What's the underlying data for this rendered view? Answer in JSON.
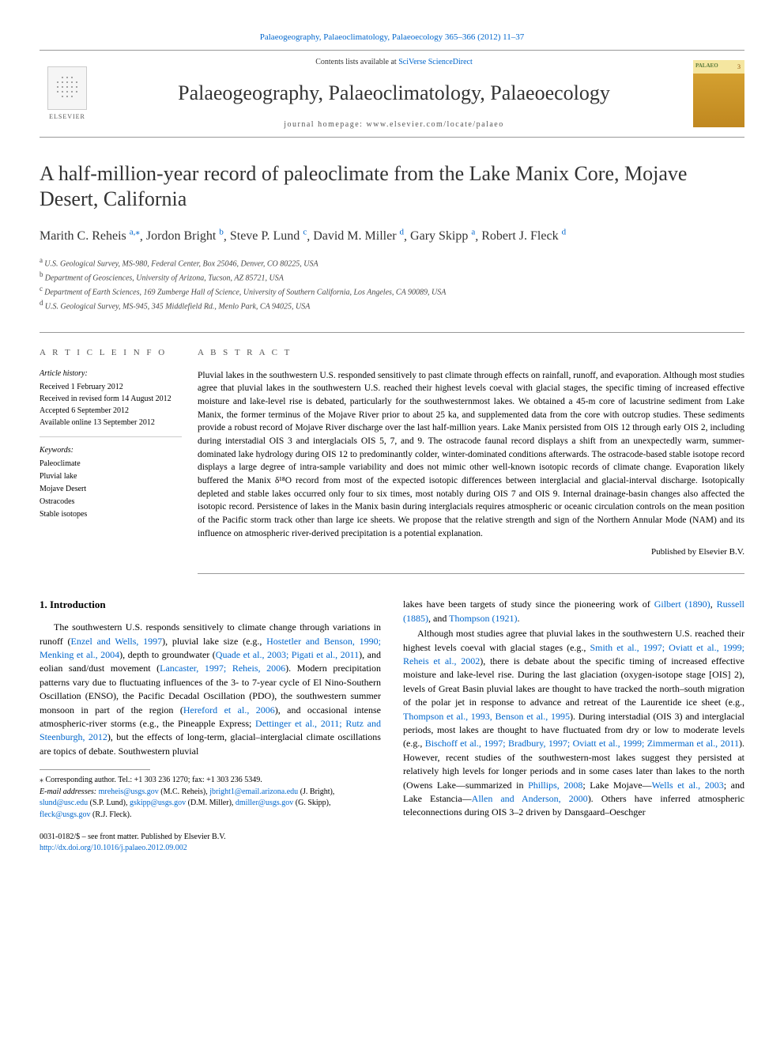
{
  "header": {
    "top_link": "Palaeogeography, Palaeoclimatology, Palaeoecology 365–366 (2012) 11–37",
    "contents_prefix": "Contents lists available at ",
    "contents_link": "SciVerse ScienceDirect",
    "journal_title": "Palaeogeography, Palaeoclimatology, Palaeoecology",
    "homepage": "journal homepage: www.elsevier.com/locate/palaeo",
    "publisher_name": "ELSEVIER"
  },
  "title": "A half-million-year record of paleoclimate from the Lake Manix Core, Mojave Desert, California",
  "authors": [
    {
      "name": "Marith C. Reheis",
      "sup": "a,",
      "star": true
    },
    {
      "name": "Jordon Bright",
      "sup": "b"
    },
    {
      "name": "Steve P. Lund",
      "sup": "c"
    },
    {
      "name": "David M. Miller",
      "sup": "d"
    },
    {
      "name": "Gary Skipp",
      "sup": "a"
    },
    {
      "name": "Robert J. Fleck",
      "sup": "d"
    }
  ],
  "affiliations": [
    {
      "sup": "a",
      "text": "U.S. Geological Survey, MS-980, Federal Center, Box 25046, Denver, CO 80225, USA"
    },
    {
      "sup": "b",
      "text": "Department of Geosciences, University of Arizona, Tucson, AZ 85721, USA"
    },
    {
      "sup": "c",
      "text": "Department of Earth Sciences, 169 Zumberge Hall of Science, University of Southern California, Los Angeles, CA 90089, USA"
    },
    {
      "sup": "d",
      "text": "U.S. Geological Survey, MS-945, 345 Middlefield Rd., Menlo Park, CA 94025, USA"
    }
  ],
  "article_info": {
    "heading": "A R T I C L E   I N F O",
    "history_label": "Article history:",
    "history": [
      "Received 1 February 2012",
      "Received in revised form 14 August 2012",
      "Accepted 6 September 2012",
      "Available online 13 September 2012"
    ],
    "keywords_label": "Keywords:",
    "keywords": [
      "Paleoclimate",
      "Pluvial lake",
      "Mojave Desert",
      "Ostracodes",
      "Stable isotopes"
    ]
  },
  "abstract": {
    "heading": "A B S T R A C T",
    "text": "Pluvial lakes in the southwestern U.S. responded sensitively to past climate through effects on rainfall, runoff, and evaporation. Although most studies agree that pluvial lakes in the southwestern U.S. reached their highest levels coeval with glacial stages, the specific timing of increased effective moisture and lake-level rise is debated, particularly for the southwesternmost lakes. We obtained a 45-m core of lacustrine sediment from Lake Manix, the former terminus of the Mojave River prior to about 25 ka, and supplemented data from the core with outcrop studies. These sediments provide a robust record of Mojave River discharge over the last half-million years. Lake Manix persisted from OIS 12 through early OIS 2, including during interstadial OIS 3 and interglacials OIS 5, 7, and 9. The ostracode faunal record displays a shift from an unexpectedly warm, summer-dominated lake hydrology during OIS 12 to predominantly colder, winter-dominated conditions afterwards. The ostracode-based stable isotope record displays a large degree of intra-sample variability and does not mimic other well-known isotopic records of climate change. Evaporation likely buffered the Manix δ¹⁸O record from most of the expected isotopic differences between interglacial and glacial-interval discharge. Isotopically depleted and stable lakes occurred only four to six times, most notably during OIS 7 and OIS 9. Internal drainage-basin changes also affected the isotopic record. Persistence of lakes in the Manix basin during interglacials requires atmospheric or oceanic circulation controls on the mean position of the Pacific storm track other than large ice sheets. We propose that the relative strength and sign of the Northern Annular Mode (NAM) and its influence on atmospheric river-derived precipitation is a potential explanation.",
    "published_by": "Published by Elsevier B.V."
  },
  "body": {
    "section_heading": "1. Introduction",
    "col1_p1_parts": [
      {
        "t": "The southwestern U.S. responds sensitively to climate change through variations in runoff ("
      },
      {
        "t": "Enzel and Wells, 1997",
        "link": true
      },
      {
        "t": "), pluvial lake size (e.g., "
      },
      {
        "t": "Hostetler and Benson, 1990; Menking et al., 2004",
        "link": true
      },
      {
        "t": "), depth to groundwater ("
      },
      {
        "t": "Quade et al., 2003; Pigati et al., 2011",
        "link": true
      },
      {
        "t": "), and eolian sand/dust movement ("
      },
      {
        "t": "Lancaster, 1997; Reheis, 2006",
        "link": true
      },
      {
        "t": "). Modern precipitation patterns vary due to fluctuating influences of the 3- to 7-year cycle of El Nino-Southern Oscillation (ENSO), the Pacific Decadal Oscillation (PDO), the southwestern summer monsoon in part of the region ("
      },
      {
        "t": "Hereford et al., 2006",
        "link": true
      },
      {
        "t": "), and occasional intense atmospheric-river storms (e.g., the Pineapple Express; "
      },
      {
        "t": "Dettinger et al., 2011; Rutz and Steenburgh, 2012",
        "link": true
      },
      {
        "t": "), but the effects of long-term, glacial–interglacial climate oscillations are topics of debate. Southwestern pluvial"
      }
    ],
    "col2_p1_parts": [
      {
        "t": "lakes have been targets of study since the pioneering work of "
      },
      {
        "t": "Gilbert (1890)",
        "link": true
      },
      {
        "t": ", "
      },
      {
        "t": "Russell (1885)",
        "link": true
      },
      {
        "t": ", and "
      },
      {
        "t": "Thompson (1921)",
        "link": true
      },
      {
        "t": "."
      }
    ],
    "col2_p2_parts": [
      {
        "t": "Although most studies agree that pluvial lakes in the southwestern U.S. reached their highest levels coeval with glacial stages (e.g., "
      },
      {
        "t": "Smith et al., 1997; Oviatt et al., 1999; Reheis et al., 2002",
        "link": true
      },
      {
        "t": "), there is debate about the specific timing of increased effective moisture and lake-level rise. During the last glaciation (oxygen-isotope stage [OIS] 2), levels of Great Basin pluvial lakes are thought to have tracked the north–south migration of the polar jet in response to advance and retreat of the Laurentide ice sheet (e.g., "
      },
      {
        "t": "Thompson et al., 1993, Benson et al., 1995",
        "link": true
      },
      {
        "t": "). During interstadial (OIS 3) and interglacial periods, most lakes are thought to have fluctuated from dry or low to moderate levels (e.g., "
      },
      {
        "t": "Bischoff et al., 1997; Bradbury, 1997; Oviatt et al., 1999; Zimmerman et al., 2011",
        "link": true
      },
      {
        "t": "). However, recent studies of the southwestern-most lakes suggest they persisted at relatively high levels for longer periods and in some cases later than lakes to the north (Owens Lake—summarized in "
      },
      {
        "t": "Phillips, 2008",
        "link": true
      },
      {
        "t": "; Lake Mojave—"
      },
      {
        "t": "Wells et al., 2003",
        "link": true
      },
      {
        "t": "; and Lake Estancia—"
      },
      {
        "t": "Allen and Anderson, 2000",
        "link": true
      },
      {
        "t": "). Others have inferred atmospheric teleconnections during OIS 3–2 driven by Dansgaard–Oeschger"
      }
    ]
  },
  "footnotes": {
    "corr_label": "Corresponding author. Tel.: +1 303 236 1270; fax: +1 303 236 5349.",
    "email_label": "E-mail addresses:",
    "emails": [
      {
        "email": "mreheis@usgs.gov",
        "person": "(M.C. Reheis)"
      },
      {
        "email": "jbright1@email.arizona.edu",
        "person": "(J. Bright)"
      },
      {
        "email": "slund@usc.edu",
        "person": "(S.P. Lund)"
      },
      {
        "email": "gskipp@usgs.gov",
        "person": "(D.M. Miller)"
      },
      {
        "email": "dmiller@usgs.gov",
        "person": "(G. Skipp)"
      },
      {
        "email": "fleck@usgs.gov",
        "person": "(R.J. Fleck)"
      }
    ]
  },
  "bottom": {
    "issn_line": "0031-0182/$ – see front matter. Published by Elsevier B.V.",
    "doi": "http://dx.doi.org/10.1016/j.palaeo.2012.09.002"
  },
  "colors": {
    "link": "#0066cc",
    "rule": "#999999",
    "text": "#000000",
    "muted": "#555555"
  }
}
